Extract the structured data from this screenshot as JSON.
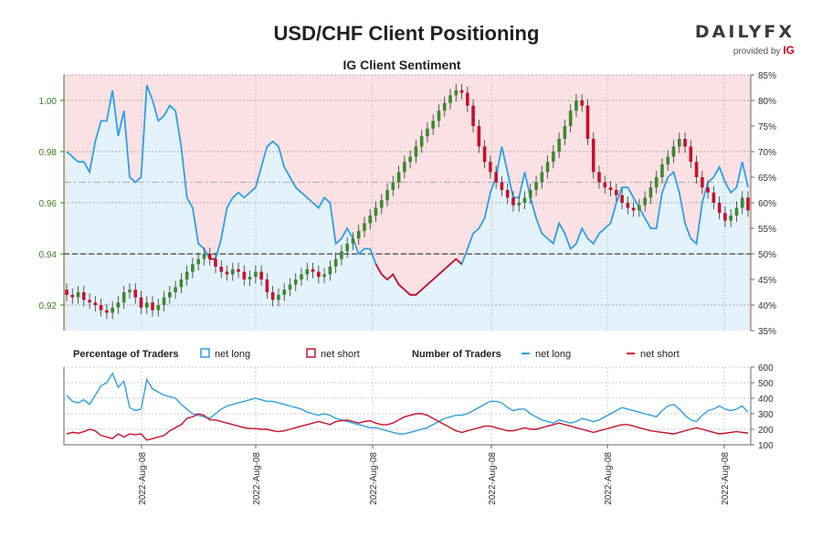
{
  "header": {
    "title": "USD/CHF Client Positioning",
    "subtitle": "IG Client Sentiment",
    "logo_main": "DAILYFX",
    "logo_sub": "provided by",
    "logo_brand": "IG"
  },
  "legend": {
    "pct_title": "Percentage of Traders",
    "pct_long": "net long",
    "pct_short": "net short",
    "num_title": "Number of Traders",
    "num_long": "net long",
    "num_short": "net short"
  },
  "colors": {
    "long": "#2e9fe6",
    "short": "#c8102e",
    "bull": "#3a8a2e",
    "bear": "#c8102e",
    "long_fill": "#e4f2fb",
    "short_fill": "#fbe1e3",
    "price_axis": "#3a7d1e"
  },
  "chart_data": {
    "type": "line",
    "title": "USD/CHF Client Positioning",
    "subtitle": "IG Client Sentiment",
    "x_tick_labels": [
      "2022-Aug-08",
      "2022-Aug-08",
      "2022-Aug-08",
      "2022-Aug-08",
      "2022-Aug-08",
      "2022-Aug-08"
    ],
    "price_axis": {
      "ticks": [
        0.92,
        0.94,
        0.96,
        0.98,
        1.0
      ],
      "ylim": [
        0.91,
        1.01
      ]
    },
    "pct_axis": {
      "ticks": [
        "35%",
        "40%",
        "45%",
        "50%",
        "55%",
        "60%",
        "65%",
        "70%",
        "75%",
        "80%",
        "85%"
      ],
      "ylim": [
        35,
        85
      ]
    },
    "count_axis": {
      "ticks": [
        100,
        200,
        300,
        400,
        500,
        600
      ],
      "ylim": [
        100,
        600
      ]
    },
    "reference_lines": {
      "pct_50": 50,
      "pct_avg_long": 64
    },
    "series": [
      {
        "name": "net long",
        "axis": "pct",
        "x": [
          0,
          1,
          2,
          3,
          4,
          5,
          6,
          7,
          8,
          9,
          10,
          11,
          12,
          13,
          14,
          15,
          16,
          17,
          18,
          19,
          20,
          21,
          22,
          23,
          24,
          25,
          26,
          27,
          28,
          29,
          30,
          31,
          32,
          33,
          34,
          35,
          36,
          37,
          38,
          39,
          40,
          41,
          42,
          43,
          44,
          45,
          46,
          47,
          48,
          49,
          50,
          51,
          52,
          53,
          54,
          55,
          56,
          57,
          58,
          59,
          60,
          61,
          62,
          63,
          64,
          65,
          66,
          67,
          68,
          69,
          70,
          71,
          72,
          73,
          74,
          75,
          76,
          77,
          78,
          79,
          80,
          81,
          82,
          83,
          84,
          85,
          86,
          87,
          88,
          89,
          90,
          91,
          92,
          93,
          94,
          95,
          96,
          97,
          98,
          99,
          100,
          101,
          102,
          103,
          104,
          105,
          106,
          107,
          108,
          109,
          110,
          111,
          112,
          113,
          114,
          115,
          116,
          117,
          118,
          119
        ],
        "values": [
          70,
          69,
          68,
          68,
          66,
          72,
          76,
          76,
          82,
          73,
          78,
          65,
          64,
          65,
          83,
          80,
          76,
          77,
          79,
          78,
          71,
          61,
          59,
          52,
          51,
          49,
          49,
          53,
          59,
          61,
          62,
          61,
          62,
          63,
          67,
          71,
          72,
          71,
          67,
          65,
          63,
          62,
          61,
          60,
          59,
          61,
          60,
          52,
          53,
          55,
          53,
          50,
          51,
          51,
          48,
          46,
          45,
          46,
          44,
          43,
          42,
          42,
          43,
          44,
          45,
          46,
          47,
          48,
          49,
          48,
          51,
          54,
          55,
          57,
          62,
          65,
          71,
          66,
          61,
          61,
          66,
          61,
          57,
          54,
          53,
          52,
          56,
          54,
          51,
          52,
          55,
          53,
          52,
          54,
          55,
          56,
          60,
          63,
          63,
          61,
          59,
          57,
          55,
          55,
          62,
          65,
          66,
          62,
          56,
          53,
          52,
          60,
          64,
          65,
          67,
          64,
          62,
          63,
          68,
          63
        ]
      },
      {
        "name": "net short",
        "axis": "pct",
        "values": [
          30,
          31,
          32,
          32,
          34,
          28,
          24,
          24,
          18,
          27,
          22,
          35,
          36,
          35,
          17,
          20,
          24,
          23,
          21,
          22,
          29,
          39,
          41,
          48,
          49,
          51,
          51,
          47,
          41,
          39,
          38,
          39,
          38,
          37,
          33,
          29,
          28,
          29,
          33,
          35,
          37,
          38,
          39,
          40,
          41,
          39,
          40,
          48,
          47,
          45,
          47,
          50,
          49,
          49,
          52,
          54,
          55,
          54,
          56,
          57,
          58,
          58,
          57,
          56,
          55,
          54,
          53,
          52,
          51,
          52,
          49,
          46,
          45,
          43,
          38,
          35,
          29,
          34,
          39,
          39,
          34,
          39,
          43,
          46,
          47,
          48,
          44,
          46,
          49,
          48,
          45,
          47,
          48,
          46,
          45,
          44,
          40,
          37,
          37,
          39,
          41,
          43,
          45,
          45,
          38,
          35,
          34,
          38,
          44,
          47,
          48,
          40,
          36,
          35,
          33,
          36,
          38,
          37,
          32,
          37
        ]
      },
      {
        "name": "net long",
        "axis": "count",
        "values": [
          420,
          380,
          370,
          390,
          360,
          420,
          480,
          500,
          560,
          470,
          510,
          340,
          320,
          330,
          520,
          460,
          440,
          420,
          410,
          400,
          360,
          330,
          300,
          290,
          280,
          270,
          300,
          330,
          350,
          360,
          370,
          380,
          390,
          400,
          390,
          380,
          380,
          370,
          360,
          350,
          340,
          330,
          310,
          300,
          290,
          300,
          290,
          270,
          260,
          250,
          240,
          230,
          220,
          210,
          210,
          200,
          190,
          180,
          170,
          170,
          180,
          190,
          200,
          210,
          230,
          250,
          270,
          280,
          290,
          290,
          300,
          320,
          340,
          360,
          380,
          380,
          370,
          340,
          320,
          330,
          330,
          300,
          280,
          260,
          250,
          240,
          260,
          250,
          240,
          250,
          270,
          260,
          250,
          260,
          280,
          300,
          320,
          340,
          330,
          320,
          310,
          300,
          290,
          280,
          320,
          350,
          360,
          330,
          290,
          260,
          250,
          290,
          320,
          330,
          350,
          330,
          320,
          330,
          350,
          310
        ]
      },
      {
        "name": "net short",
        "axis": "count",
        "values": [
          170,
          180,
          175,
          185,
          200,
          190,
          160,
          150,
          140,
          170,
          150,
          170,
          165,
          170,
          130,
          140,
          150,
          160,
          190,
          210,
          230,
          270,
          280,
          300,
          290,
          260,
          260,
          250,
          240,
          230,
          220,
          210,
          205,
          205,
          200,
          200,
          190,
          185,
          190,
          200,
          210,
          220,
          230,
          240,
          250,
          240,
          230,
          250,
          255,
          260,
          250,
          240,
          250,
          255,
          240,
          230,
          230,
          240,
          260,
          280,
          290,
          300,
          300,
          290,
          270,
          250,
          230,
          210,
          190,
          180,
          190,
          200,
          210,
          220,
          220,
          210,
          200,
          190,
          190,
          200,
          210,
          200,
          200,
          210,
          220,
          230,
          240,
          230,
          220,
          210,
          200,
          190,
          180,
          190,
          200,
          210,
          220,
          230,
          230,
          220,
          210,
          200,
          190,
          185,
          180,
          175,
          170,
          180,
          190,
          200,
          210,
          200,
          190,
          180,
          170,
          175,
          180,
          185,
          180,
          175
        ]
      }
    ],
    "candles": {
      "open": [
        0.926,
        0.924,
        0.923,
        0.925,
        0.922,
        0.921,
        0.92,
        0.918,
        0.917,
        0.919,
        0.921,
        0.925,
        0.926,
        0.923,
        0.919,
        0.921,
        0.918,
        0.92,
        0.923,
        0.925,
        0.927,
        0.93,
        0.933,
        0.936,
        0.938,
        0.94,
        0.938,
        0.935,
        0.933,
        0.932,
        0.934,
        0.933,
        0.93,
        0.931,
        0.933,
        0.93,
        0.925,
        0.922,
        0.924,
        0.926,
        0.928,
        0.93,
        0.932,
        0.934,
        0.933,
        0.931,
        0.932,
        0.935,
        0.938,
        0.941,
        0.944,
        0.946,
        0.949,
        0.952,
        0.955,
        0.958,
        0.961,
        0.965,
        0.968,
        0.972,
        0.976,
        0.978,
        0.982,
        0.986,
        0.989,
        0.992,
        0.996,
        0.999,
        1.002,
        1.004,
        1.003,
        0.998,
        0.99,
        0.982,
        0.976,
        0.972,
        0.968,
        0.965,
        0.962,
        0.959,
        0.96,
        0.962,
        0.965,
        0.968,
        0.972,
        0.976,
        0.98,
        0.985,
        0.99,
        0.996,
        1.0,
        0.998,
        0.985,
        0.972,
        0.968,
        0.966,
        0.965,
        0.963,
        0.96,
        0.958,
        0.957,
        0.959,
        0.962,
        0.966,
        0.97,
        0.975,
        0.978,
        0.982,
        0.985,
        0.982,
        0.976,
        0.97,
        0.966,
        0.964,
        0.96,
        0.956,
        0.953,
        0.955,
        0.958,
        0.962
      ],
      "close": [
        0.924,
        0.923,
        0.925,
        0.922,
        0.921,
        0.92,
        0.918,
        0.917,
        0.919,
        0.921,
        0.925,
        0.926,
        0.923,
        0.919,
        0.921,
        0.918,
        0.92,
        0.923,
        0.925,
        0.927,
        0.93,
        0.933,
        0.936,
        0.938,
        0.94,
        0.938,
        0.935,
        0.933,
        0.932,
        0.934,
        0.933,
        0.93,
        0.931,
        0.933,
        0.93,
        0.925,
        0.922,
        0.924,
        0.926,
        0.928,
        0.93,
        0.932,
        0.934,
        0.933,
        0.931,
        0.932,
        0.935,
        0.938,
        0.941,
        0.944,
        0.946,
        0.949,
        0.952,
        0.955,
        0.958,
        0.961,
        0.965,
        0.968,
        0.972,
        0.976,
        0.978,
        0.982,
        0.986,
        0.989,
        0.992,
        0.996,
        0.999,
        1.002,
        1.004,
        1.003,
        0.998,
        0.99,
        0.982,
        0.976,
        0.972,
        0.968,
        0.965,
        0.962,
        0.959,
        0.96,
        0.962,
        0.965,
        0.968,
        0.972,
        0.976,
        0.98,
        0.985,
        0.99,
        0.996,
        1.0,
        0.998,
        0.985,
        0.972,
        0.968,
        0.966,
        0.965,
        0.963,
        0.96,
        0.958,
        0.957,
        0.959,
        0.962,
        0.966,
        0.97,
        0.975,
        0.978,
        0.982,
        0.985,
        0.982,
        0.976,
        0.97,
        0.966,
        0.964,
        0.96,
        0.956,
        0.953,
        0.955,
        0.958,
        0.962,
        0.957
      ]
    }
  }
}
